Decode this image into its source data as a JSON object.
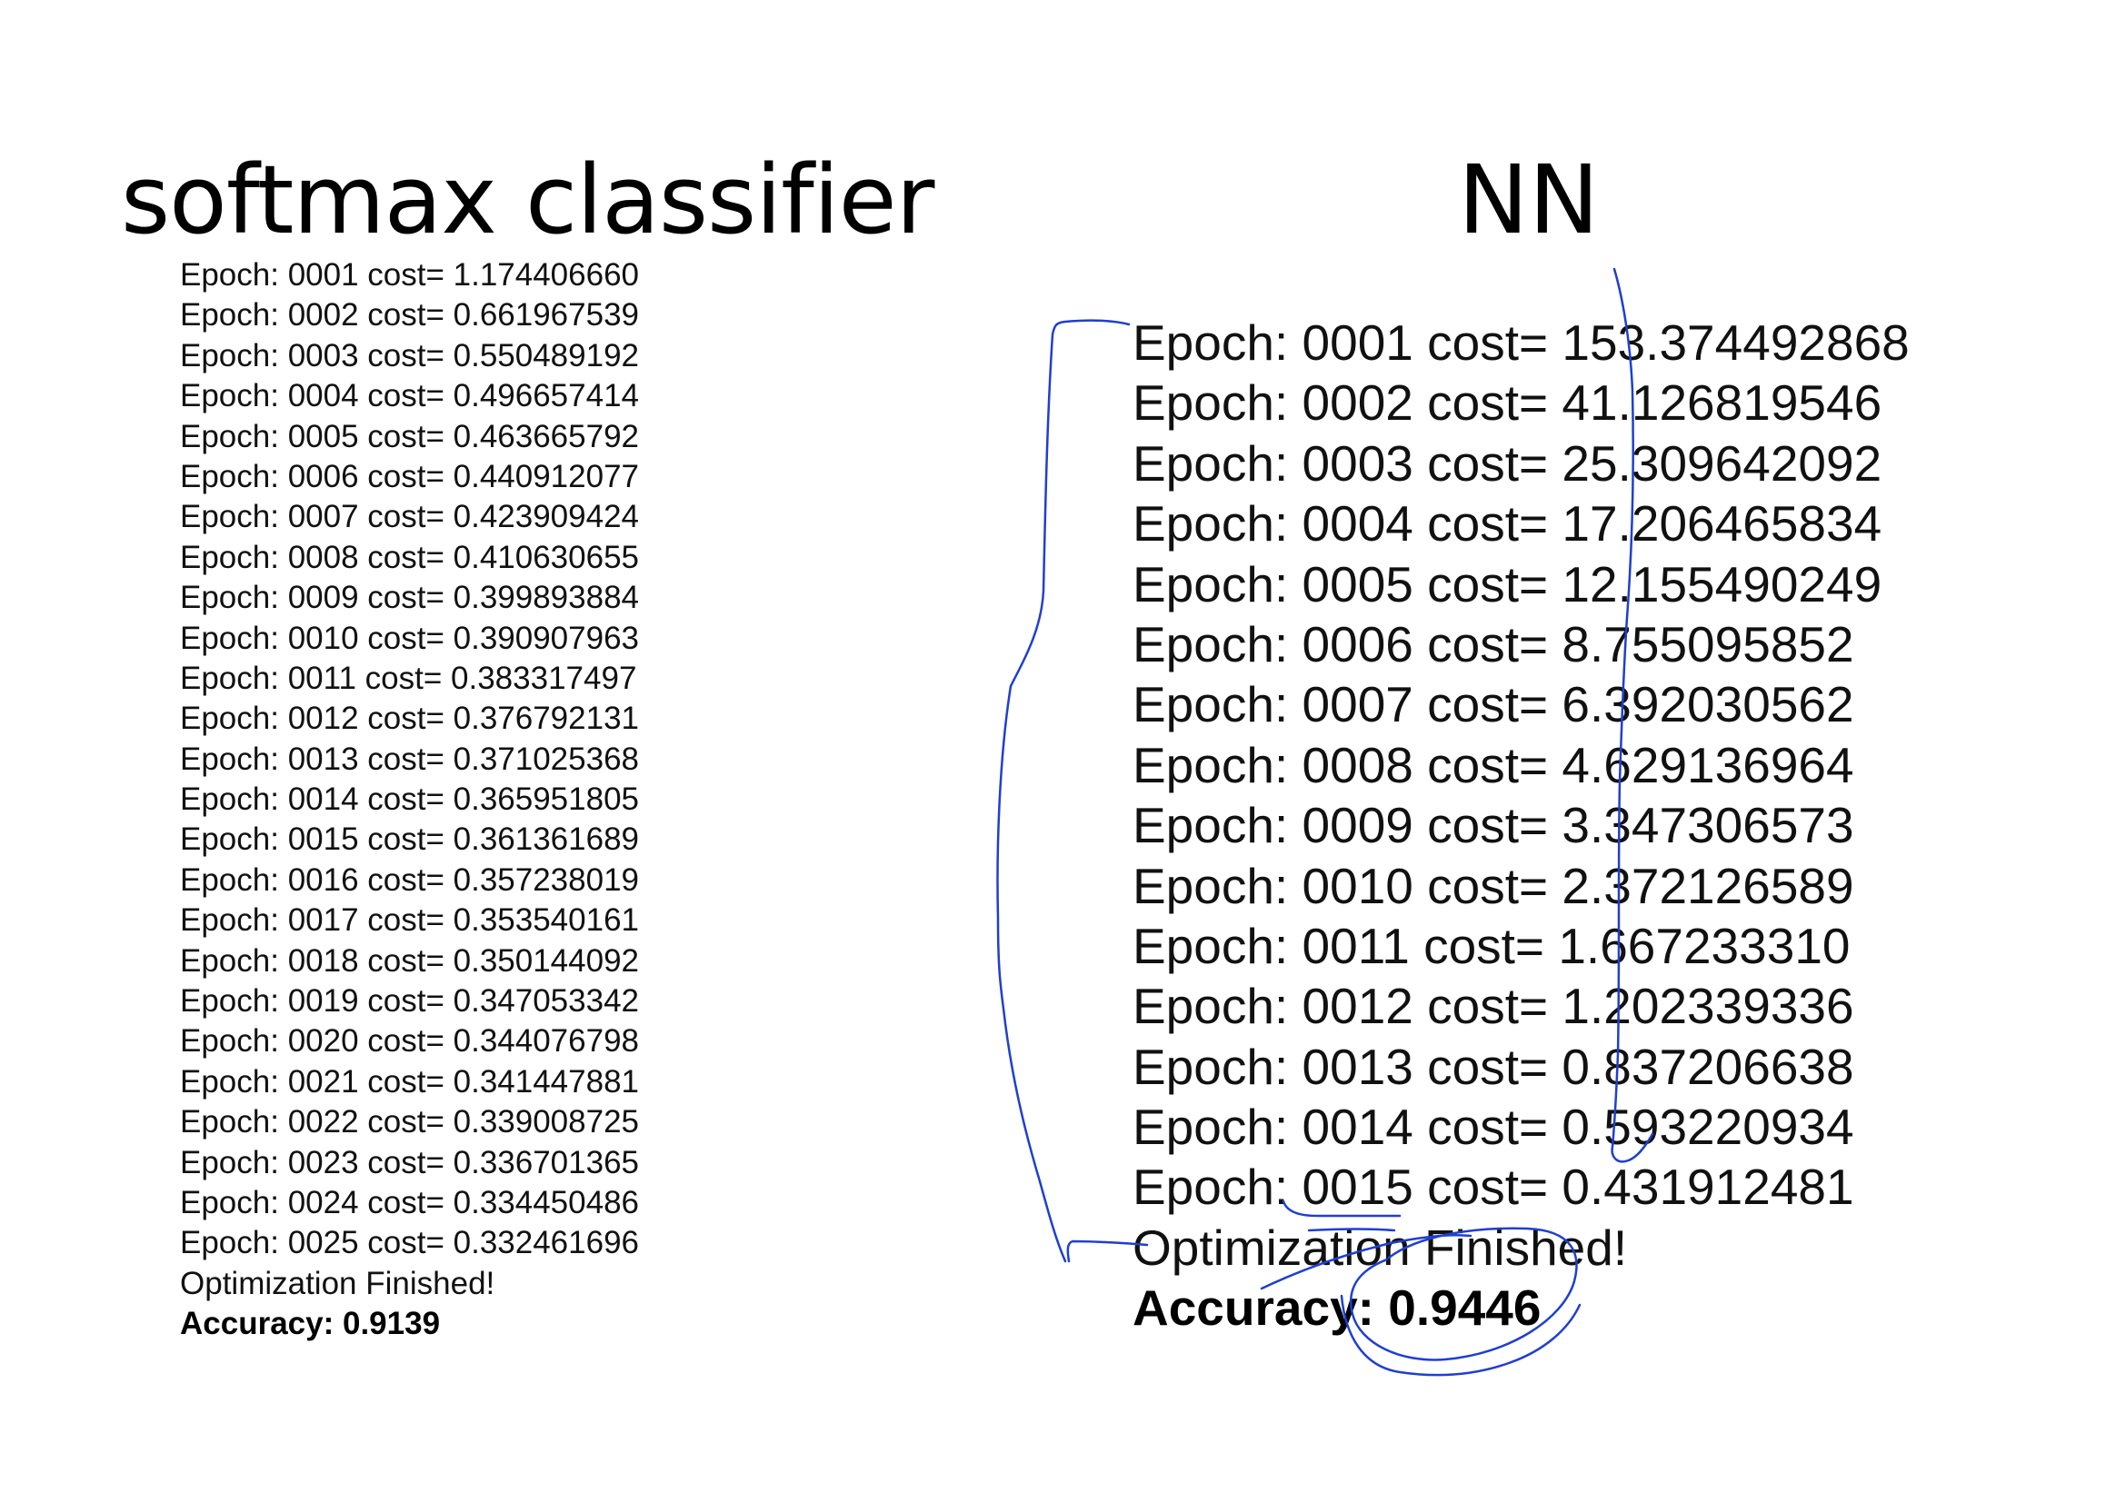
{
  "softmax": {
    "title": "softmax classifier",
    "log_lines": [
      "Epoch: 0001 cost= 1.174406660",
      "Epoch: 0002 cost= 0.661967539",
      "Epoch: 0003 cost= 0.550489192",
      "Epoch: 0004 cost= 0.496657414",
      "Epoch: 0005 cost= 0.463665792",
      "Epoch: 0006 cost= 0.440912077",
      "Epoch: 0007 cost= 0.423909424",
      "Epoch: 0008 cost= 0.410630655",
      "Epoch: 0009 cost= 0.399893884",
      "Epoch: 0010 cost= 0.390907963",
      "Epoch: 0011 cost= 0.383317497",
      "Epoch: 0012 cost= 0.376792131",
      "Epoch: 0013 cost= 0.371025368",
      "Epoch: 0014 cost= 0.365951805",
      "Epoch: 0015 cost= 0.361361689",
      "Epoch: 0016 cost= 0.357238019",
      "Epoch: 0017 cost= 0.353540161",
      "Epoch: 0018 cost= 0.350144092",
      "Epoch: 0019 cost= 0.347053342",
      "Epoch: 0020 cost= 0.344076798",
      "Epoch: 0021 cost= 0.341447881",
      "Epoch: 0022 cost= 0.339008725",
      "Epoch: 0023 cost= 0.336701365",
      "Epoch: 0024 cost= 0.334450486",
      "Epoch: 0025 cost= 0.332461696",
      "Optimization Finished!"
    ],
    "accuracy": "Accuracy: 0.9139"
  },
  "nn": {
    "title": "NN",
    "log_lines": [
      "Epoch: 0001 cost= 153.374492868",
      "Epoch: 0002 cost= 41.126819546",
      "Epoch: 0003 cost= 25.309642092",
      "Epoch: 0004 cost= 17.206465834",
      "Epoch: 0005 cost= 12.155490249",
      "Epoch: 0006 cost= 8.755095852",
      "Epoch: 0007 cost= 6.392030562",
      "Epoch: 0008 cost= 4.629136964",
      "Epoch: 0009 cost= 3.347306573",
      "Epoch: 0010 cost= 2.372126589",
      "Epoch: 0011 cost= 1.667233310",
      "Epoch: 0012 cost= 1.202339336",
      "Epoch: 0013 cost= 0.837206638",
      "Epoch: 0014 cost= 0.593220934",
      "Epoch: 0015 cost= 0.431912481",
      "Optimization Finished!"
    ],
    "accuracy": "Accuracy: 0.9446"
  },
  "colors": {
    "text": "#111111",
    "heading": "#000000",
    "annotation_ink": "#1f3fd0"
  }
}
